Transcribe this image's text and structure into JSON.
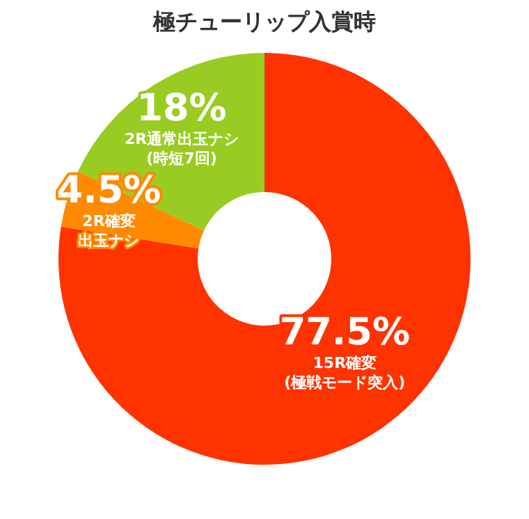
{
  "chart_data": {
    "type": "donut",
    "title": "極チューリップ入賞時",
    "categories": [
      "15R確変(極戦モード突入)",
      "2R確変出玉ナシ",
      "2R通常出玉ナシ(時短7回)"
    ],
    "values": [
      77.5,
      4.5,
      18
    ],
    "colors": [
      "#ff3300",
      "#ff8a00",
      "#99cc22"
    ],
    "value_labels": [
      "77.5%",
      "4.5%",
      "18%"
    ],
    "legend": false
  }
}
